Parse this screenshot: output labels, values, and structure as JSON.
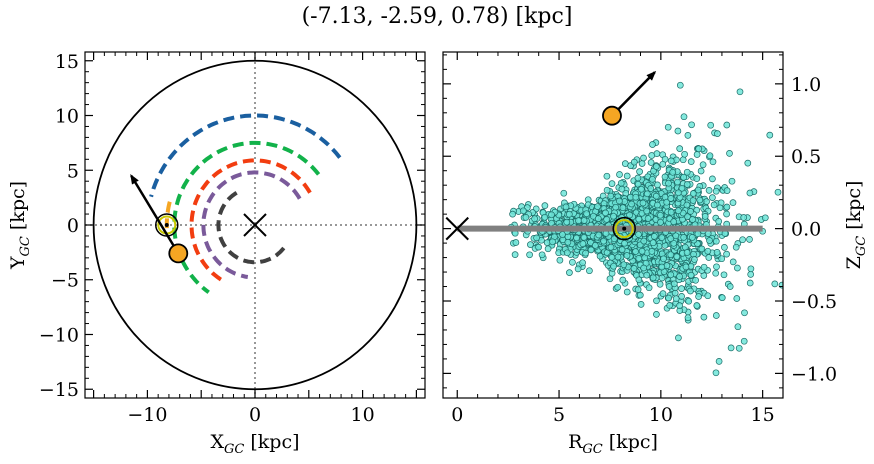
{
  "title": "(-7.13, -2.59, 0.78) [kpc]",
  "chart_data": [
    {
      "type": "line",
      "xlabel": "X",
      "xlabel_sub": "GC",
      "xlabel_unit": " [kpc]",
      "ylabel": "Y",
      "ylabel_sub": "GC",
      "ylabel_unit": " [kpc]",
      "xlim": [
        -15.8,
        15.8
      ],
      "ylim": [
        -15.8,
        15.8
      ],
      "xticks": [
        -10,
        0,
        10
      ],
      "xtick_labels": [
        "−10",
        "0",
        "10"
      ],
      "yticks": [
        -15,
        -10,
        -5,
        0,
        5,
        10,
        15
      ],
      "ytick_labels": [
        "−15",
        "−10",
        "−5",
        "0",
        "5",
        "10",
        "15"
      ],
      "boundary_circle_radius": 15,
      "galactic_center": [
        0,
        0
      ],
      "sun": [
        -8.2,
        0
      ],
      "target": [
        -7.13,
        -2.59
      ],
      "target_velocity_arrow_tip": [
        -11.5,
        4.5
      ],
      "arms": [
        {
          "color": "#1a5fa0",
          "radius": 10.0,
          "theta_start_deg": 38,
          "theta_end_deg": 165
        },
        {
          "color": "#12b24a",
          "radius": 7.5,
          "theta_start_deg": 38,
          "theta_end_deg": 235
        },
        {
          "color": "#f5a623",
          "radius": 8.2,
          "theta_start_deg": 165,
          "theta_end_deg": 182
        },
        {
          "color": "#f23d10",
          "radius": 5.9,
          "theta_start_deg": 30,
          "theta_end_deg": 242
        },
        {
          "color": "#7a5a9a",
          "radius": 4.8,
          "theta_start_deg": 30,
          "theta_end_deg": 262
        },
        {
          "color": "#404040",
          "radius": 3.4,
          "theta_start_deg": 120,
          "theta_end_deg": 330
        }
      ]
    },
    {
      "type": "scatter",
      "xlabel": "R",
      "xlabel_sub": "GC",
      "xlabel_unit": " [kpc]",
      "ylabel": "Z",
      "ylabel_sub": "GC",
      "ylabel_unit": " [kpc]",
      "xlim": [
        -0.7,
        16.0
      ],
      "ylim": [
        -1.17,
        1.22
      ],
      "xticks": [
        0,
        5,
        10,
        15
      ],
      "xtick_labels": [
        "0",
        "5",
        "10",
        "15"
      ],
      "yticks": [
        -1.0,
        -0.5,
        0.0,
        0.5,
        1.0
      ],
      "ytick_labels": [
        "−1.0",
        "−0.5",
        "0.0",
        "0.5",
        "1.0"
      ],
      "disk_plane": {
        "z": 0.0,
        "r_range": [
          0,
          15
        ],
        "color": "#808080"
      },
      "galactic_center": [
        0,
        0
      ],
      "sun": [
        8.2,
        0.0
      ],
      "target": [
        7.6,
        0.78
      ],
      "target_velocity_arrow_tip": [
        9.7,
        1.08
      ],
      "point_color": "#6ee5d8",
      "point_edge_color": "#1a6b66",
      "n_points": 2200,
      "distribution": {
        "r_mean": 8.6,
        "r_std": 2.2,
        "r_min": 2.5,
        "r_max": 16.0,
        "z_std_at_sun": 0.09,
        "z_flare_scale": 0.04
      }
    }
  ]
}
